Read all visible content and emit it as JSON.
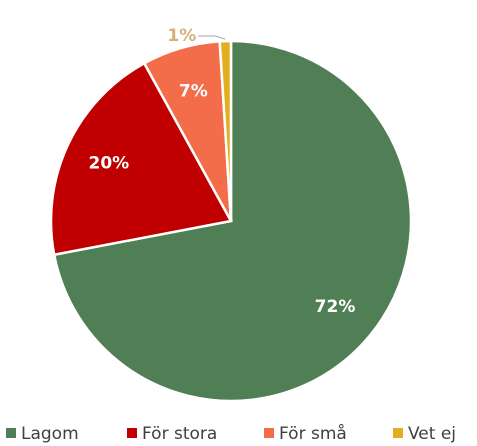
{
  "chart_data": {
    "type": "pie",
    "categories": [
      "Lagom",
      "För stora",
      "För små",
      "Vet ej"
    ],
    "values": [
      72,
      20,
      7,
      1
    ],
    "value_labels": [
      "72%",
      "20%",
      "7%",
      "1%"
    ],
    "colors": [
      "#507e55",
      "#c00000",
      "#f36d4b",
      "#e3ae22"
    ],
    "legend": "bottom"
  }
}
